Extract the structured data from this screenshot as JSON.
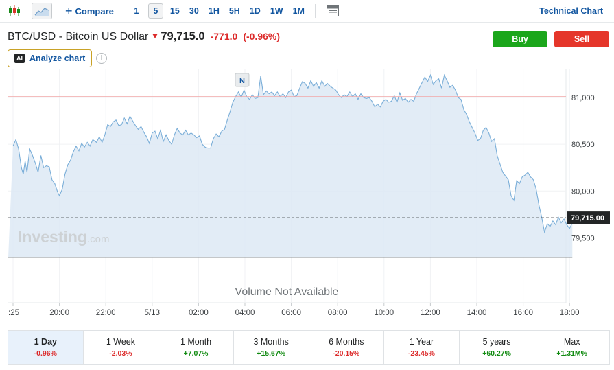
{
  "toolbar": {
    "compare_label": "Compare",
    "timeframes": [
      "1",
      "5",
      "15",
      "30",
      "1H",
      "5H",
      "1D",
      "1W",
      "1M"
    ],
    "active_timeframe": "5",
    "technical_label": "Technical Chart"
  },
  "header": {
    "instrument": "BTC/USD - Bitcoin US Dollar",
    "price": "79,715.0",
    "change": "-771.0",
    "change_pct": "(-0.96%)",
    "buy_label": "Buy",
    "sell_label": "Sell",
    "analyze_badge": "AI",
    "analyze_label": "Analyze chart",
    "info_glyph": "i"
  },
  "colors": {
    "accent": "#1256a0",
    "negative": "#dc2b2b",
    "positive": "#108a10",
    "buy": "#1ba61b",
    "sell": "#e5362a",
    "line": "#7aaed8",
    "area": "#dde9f4"
  },
  "chart_data": {
    "type": "area",
    "x_ticks": [
      ":25",
      "20:00",
      "22:00",
      "5/13",
      "02:00",
      "04:00",
      "06:00",
      "08:00",
      "10:00",
      "12:00",
      "14:00",
      "16:00",
      "18:00"
    ],
    "y_ticks": [
      "81,000",
      "80,500",
      "80,000",
      "79,500"
    ],
    "ylim": [
      79290,
      81250
    ],
    "last_price_label": "79,715.00",
    "last_price": 79715,
    "reference_line": 81010,
    "news_marker_label": "N",
    "news_markers_x": [
      4.94,
      9.19,
      16.63
    ],
    "watermark_main": "Investing",
    "watermark_suffix": ".com",
    "volume_label": "Volume Not Available",
    "points": [
      [
        0.0,
        80480
      ],
      [
        0.06,
        80550
      ],
      [
        0.12,
        80450
      ],
      [
        0.18,
        80250
      ],
      [
        0.22,
        80180
      ],
      [
        0.26,
        80320
      ],
      [
        0.3,
        80200
      ],
      [
        0.36,
        80450
      ],
      [
        0.42,
        80380
      ],
      [
        0.48,
        80300
      ],
      [
        0.54,
        80200
      ],
      [
        0.6,
        80380
      ],
      [
        0.66,
        80250
      ],
      [
        0.72,
        80270
      ],
      [
        0.78,
        80260
      ],
      [
        0.84,
        80120
      ],
      [
        0.9,
        80080
      ],
      [
        0.96,
        79990
      ],
      [
        1.0,
        79950
      ],
      [
        1.06,
        80020
      ],
      [
        1.12,
        80180
      ],
      [
        1.18,
        80280
      ],
      [
        1.24,
        80330
      ],
      [
        1.3,
        80420
      ],
      [
        1.36,
        80480
      ],
      [
        1.42,
        80430
      ],
      [
        1.48,
        80510
      ],
      [
        1.54,
        80470
      ],
      [
        1.6,
        80520
      ],
      [
        1.66,
        80480
      ],
      [
        1.72,
        80550
      ],
      [
        1.8,
        80520
      ],
      [
        1.86,
        80580
      ],
      [
        1.92,
        80520
      ],
      [
        1.98,
        80600
      ],
      [
        2.04,
        80710
      ],
      [
        2.1,
        80690
      ],
      [
        2.16,
        80740
      ],
      [
        2.22,
        80760
      ],
      [
        2.28,
        80700
      ],
      [
        2.34,
        80710
      ],
      [
        2.4,
        80780
      ],
      [
        2.46,
        80720
      ],
      [
        2.52,
        80800
      ],
      [
        2.58,
        80750
      ],
      [
        2.64,
        80700
      ],
      [
        2.7,
        80660
      ],
      [
        2.76,
        80690
      ],
      [
        2.82,
        80630
      ],
      [
        2.88,
        80580
      ],
      [
        2.94,
        80510
      ],
      [
        3.0,
        80620
      ],
      [
        3.06,
        80640
      ],
      [
        3.12,
        80560
      ],
      [
        3.18,
        80650
      ],
      [
        3.24,
        80530
      ],
      [
        3.3,
        80600
      ],
      [
        3.36,
        80540
      ],
      [
        3.42,
        80500
      ],
      [
        3.48,
        80600
      ],
      [
        3.54,
        80670
      ],
      [
        3.6,
        80620
      ],
      [
        3.66,
        80600
      ],
      [
        3.72,
        80650
      ],
      [
        3.78,
        80600
      ],
      [
        3.84,
        80620
      ],
      [
        3.9,
        80600
      ],
      [
        3.96,
        80570
      ],
      [
        4.02,
        80590
      ],
      [
        4.08,
        80500
      ],
      [
        4.14,
        80470
      ],
      [
        4.2,
        80460
      ],
      [
        4.26,
        80460
      ],
      [
        4.32,
        80560
      ],
      [
        4.38,
        80610
      ],
      [
        4.44,
        80580
      ],
      [
        4.5,
        80640
      ],
      [
        4.56,
        80660
      ],
      [
        4.62,
        80760
      ],
      [
        4.68,
        80850
      ],
      [
        4.74,
        80950
      ],
      [
        4.8,
        81010
      ],
      [
        4.86,
        81060
      ],
      [
        4.92,
        81000
      ],
      [
        4.98,
        81080
      ],
      [
        5.04,
        81010
      ],
      [
        5.1,
        80980
      ],
      [
        5.16,
        81030
      ],
      [
        5.22,
        80990
      ],
      [
        5.28,
        81000
      ],
      [
        5.34,
        81230
      ],
      [
        5.4,
        81030
      ],
      [
        5.46,
        81070
      ],
      [
        5.52,
        81040
      ],
      [
        5.58,
        81060
      ],
      [
        5.64,
        81020
      ],
      [
        5.7,
        81060
      ],
      [
        5.76,
        81010
      ],
      [
        5.82,
        81040
      ],
      [
        5.88,
        81000
      ],
      [
        5.94,
        81060
      ],
      [
        6.0,
        81080
      ],
      [
        6.06,
        81010
      ],
      [
        6.12,
        81020
      ],
      [
        6.18,
        81100
      ],
      [
        6.24,
        81170
      ],
      [
        6.3,
        81150
      ],
      [
        6.36,
        81100
      ],
      [
        6.42,
        81180
      ],
      [
        6.48,
        81120
      ],
      [
        6.54,
        81160
      ],
      [
        6.6,
        81100
      ],
      [
        6.66,
        81180
      ],
      [
        6.72,
        81120
      ],
      [
        6.78,
        81150
      ],
      [
        6.84,
        81120
      ],
      [
        6.9,
        81100
      ],
      [
        6.96,
        81080
      ],
      [
        7.02,
        81030
      ],
      [
        7.08,
        81000
      ],
      [
        7.14,
        81030
      ],
      [
        7.2,
        81010
      ],
      [
        7.26,
        81060
      ],
      [
        7.32,
        81010
      ],
      [
        7.38,
        81040
      ],
      [
        7.44,
        80980
      ],
      [
        7.5,
        81040
      ],
      [
        7.56,
        81000
      ],
      [
        7.62,
        80990
      ],
      [
        7.68,
        81000
      ],
      [
        7.74,
        80960
      ],
      [
        7.8,
        80900
      ],
      [
        7.86,
        80930
      ],
      [
        7.92,
        80900
      ],
      [
        7.98,
        80960
      ],
      [
        8.04,
        80980
      ],
      [
        8.1,
        80950
      ],
      [
        8.16,
        80960
      ],
      [
        8.22,
        81020
      ],
      [
        8.28,
        80950
      ],
      [
        8.34,
        81050
      ],
      [
        8.4,
        80970
      ],
      [
        8.46,
        80990
      ],
      [
        8.52,
        80950
      ],
      [
        8.58,
        80980
      ],
      [
        8.64,
        80960
      ],
      [
        8.7,
        81040
      ],
      [
        8.76,
        81100
      ],
      [
        8.82,
        81160
      ],
      [
        8.88,
        81220
      ],
      [
        8.94,
        81170
      ],
      [
        9.0,
        81240
      ],
      [
        9.06,
        81140
      ],
      [
        9.12,
        81180
      ],
      [
        9.18,
        81200
      ],
      [
        9.24,
        81100
      ],
      [
        9.3,
        81240
      ],
      [
        9.36,
        81180
      ],
      [
        9.42,
        81110
      ],
      [
        9.48,
        81130
      ],
      [
        9.54,
        81080
      ],
      [
        9.6,
        81000
      ],
      [
        9.66,
        80980
      ],
      [
        9.72,
        80870
      ],
      [
        9.78,
        80820
      ],
      [
        9.84,
        80740
      ],
      [
        9.9,
        80680
      ],
      [
        9.96,
        80620
      ],
      [
        10.02,
        80540
      ],
      [
        10.08,
        80560
      ],
      [
        10.14,
        80650
      ],
      [
        10.2,
        80680
      ],
      [
        10.26,
        80620
      ],
      [
        10.32,
        80530
      ],
      [
        10.38,
        80560
      ],
      [
        10.44,
        80380
      ],
      [
        10.5,
        80290
      ],
      [
        10.56,
        80200
      ],
      [
        10.62,
        80160
      ],
      [
        10.68,
        80120
      ],
      [
        10.74,
        79950
      ],
      [
        10.8,
        79900
      ],
      [
        10.86,
        80110
      ],
      [
        10.92,
        80080
      ],
      [
        10.98,
        80150
      ],
      [
        11.04,
        80170
      ],
      [
        11.1,
        80200
      ],
      [
        11.16,
        80150
      ],
      [
        11.22,
        80120
      ],
      [
        11.28,
        80020
      ],
      [
        11.34,
        79850
      ],
      [
        11.4,
        79720
      ],
      [
        11.46,
        79560
      ],
      [
        11.52,
        79650
      ],
      [
        11.58,
        79620
      ],
      [
        11.64,
        79680
      ],
      [
        11.7,
        79640
      ],
      [
        11.76,
        79720
      ],
      [
        11.82,
        79660
      ],
      [
        11.88,
        79700
      ],
      [
        11.94,
        79640
      ],
      [
        12.0,
        79600
      ],
      [
        12.06,
        79660
      ]
    ]
  },
  "periods": [
    {
      "label": "1 Day",
      "change": "-0.96%",
      "dir": "neg",
      "active": true
    },
    {
      "label": "1 Week",
      "change": "-2.03%",
      "dir": "neg",
      "active": false
    },
    {
      "label": "1 Month",
      "change": "+7.07%",
      "dir": "pos",
      "active": false
    },
    {
      "label": "3 Months",
      "change": "+15.67%",
      "dir": "pos",
      "active": false
    },
    {
      "label": "6 Months",
      "change": "-20.15%",
      "dir": "neg",
      "active": false
    },
    {
      "label": "1 Year",
      "change": "-23.45%",
      "dir": "neg",
      "active": false
    },
    {
      "label": "5 years",
      "change": "+60.27%",
      "dir": "pos",
      "active": false
    },
    {
      "label": "Max",
      "change": "+1.31M%",
      "dir": "pos",
      "active": false
    }
  ]
}
